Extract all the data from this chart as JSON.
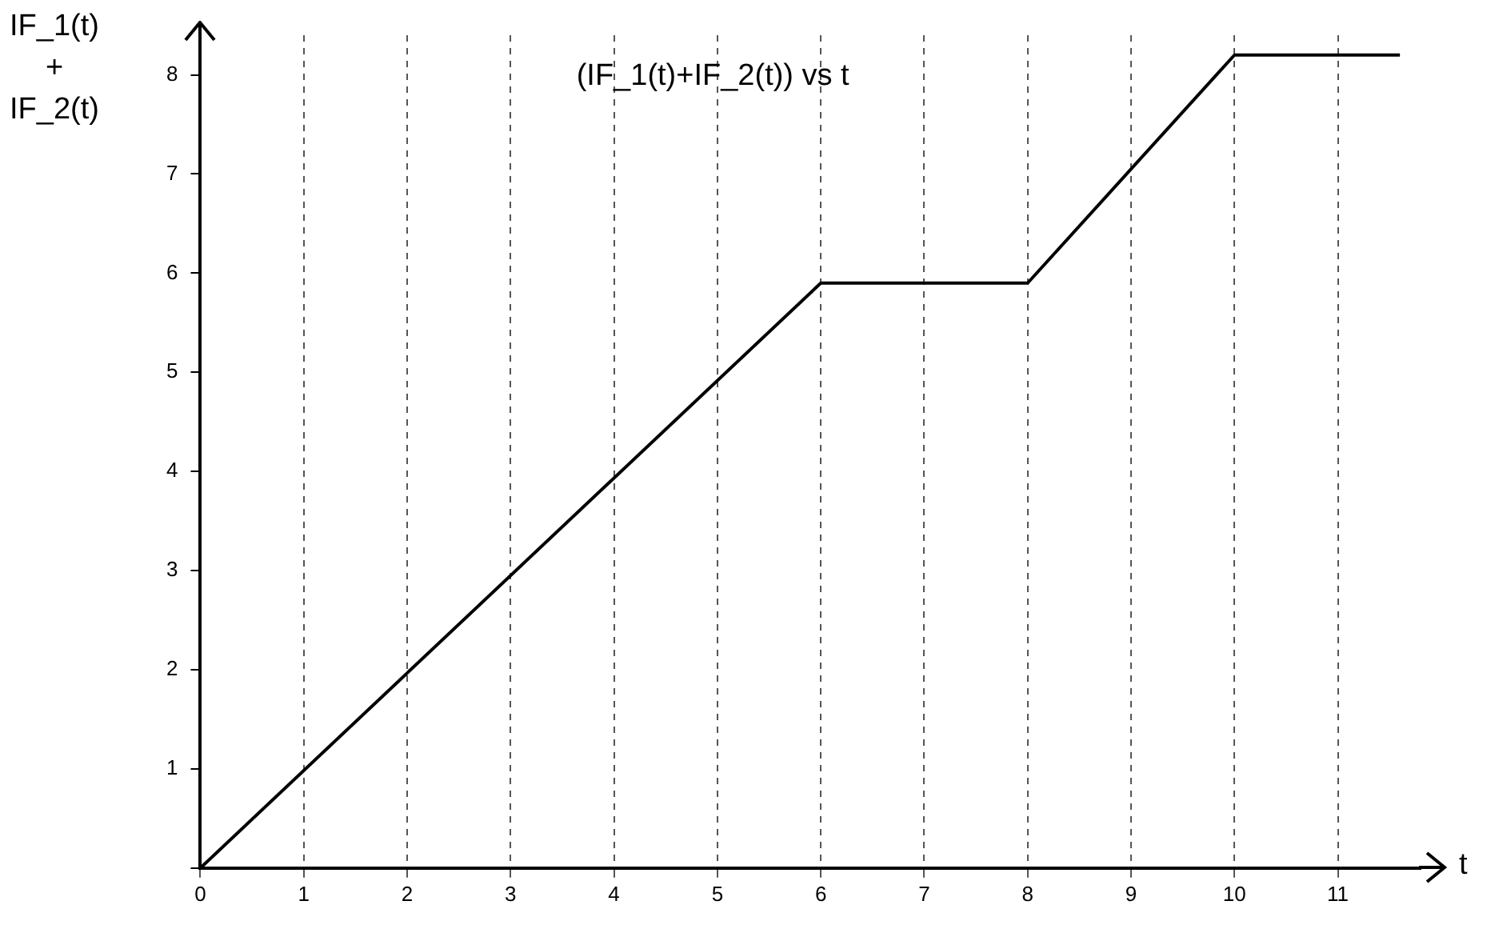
{
  "chart_data": {
    "type": "line",
    "title": "(IF_1(t)+IF_2(t)) vs t",
    "xlabel": "t",
    "ylabel": "IF_1(t)\n+\nIF_2(t)",
    "series": [
      {
        "color": "#000000",
        "x": [
          0,
          6,
          8,
          10,
          11.6
        ],
        "values": [
          0,
          5.9,
          5.9,
          8.2,
          8.2
        ]
      }
    ],
    "xlim": [
      0,
      11.8
    ],
    "xticks": [
      0,
      1,
      2,
      3,
      4,
      5,
      6,
      7,
      8,
      9,
      10,
      11
    ],
    "ylim": [
      0,
      8.4
    ],
    "yticks": [
      {
        "value": 0,
        "label": null
      },
      1,
      2,
      3,
      4,
      5,
      6,
      7,
      8
    ],
    "grid": "x",
    "legend": false,
    "marker": "none",
    "line_style": "solid"
  }
}
